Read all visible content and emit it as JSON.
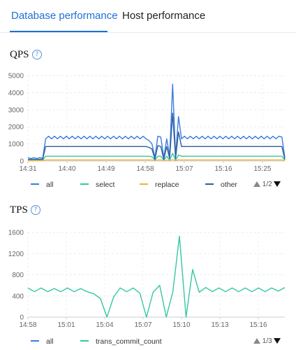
{
  "tabs": [
    {
      "label": "Database performance",
      "active": true
    },
    {
      "label": "Host performance",
      "active": false
    }
  ],
  "help_glyph": "?",
  "colors": {
    "accent": "#1f6fd6",
    "all": "#3b7be0",
    "select": "#35c7a2",
    "replace": "#f2b233",
    "other": "#2f5f9a"
  },
  "qps": {
    "title": "QPS",
    "legend": [
      {
        "label": "all",
        "color": "#3b7be0"
      },
      {
        "label": "select",
        "color": "#35c7a2"
      },
      {
        "label": "replace",
        "color": "#f2b233"
      },
      {
        "label": "other",
        "color": "#2f5f9a"
      }
    ],
    "pager": "1/2"
  },
  "tps": {
    "title": "TPS",
    "legend": [
      {
        "label": "all",
        "color": "#3b7be0"
      },
      {
        "label": "trans_commit_count",
        "color": "#35c7a2"
      }
    ],
    "pager": "1/3"
  },
  "chart_data": [
    {
      "type": "line",
      "title": "QPS",
      "ylim": [
        0,
        5000
      ],
      "y_ticks": [
        "0",
        "1000",
        "2000",
        "3000",
        "4000",
        "5000"
      ],
      "x_tick_labels": [
        "14:31",
        "14:40",
        "14:49",
        "14:58",
        "15:07",
        "15:16",
        "15:25"
      ],
      "grid": true,
      "legend_position": "bottom",
      "series": [
        {
          "name": "all",
          "color": "#3b7be0",
          "values": [
            200,
            140,
            200,
            140,
            200,
            150,
            1300,
            1450,
            1300,
            1450,
            1300,
            1450,
            1300,
            1450,
            1300,
            1450,
            1300,
            1450,
            1300,
            1450,
            1300,
            1450,
            1300,
            1450,
            1300,
            1450,
            1300,
            1450,
            1300,
            1450,
            1300,
            1450,
            1300,
            1450,
            1300,
            1450,
            1300,
            1450,
            1300,
            1450,
            1300,
            1200,
            1000,
            200,
            1450,
            1400,
            200,
            1300,
            300,
            4500,
            300,
            2600,
            1300,
            1450,
            1300,
            1450,
            1300,
            1450,
            1300,
            1450,
            1300,
            1450,
            1300,
            1450,
            1300,
            1450,
            1300,
            1450,
            1300,
            1450,
            1300,
            1450,
            1300,
            1450,
            1300,
            1450,
            1300,
            1450,
            1300,
            1450,
            1300,
            1450,
            1300,
            1450,
            1300,
            1450,
            1400,
            200
          ]
        },
        {
          "name": "select",
          "color": "#35c7a2",
          "values": [
            50,
            50,
            50,
            50,
            50,
            50,
            280,
            280,
            280,
            280,
            280,
            280,
            280,
            280,
            280,
            280,
            280,
            280,
            280,
            280,
            280,
            280,
            280,
            280,
            280,
            280,
            280,
            280,
            280,
            280,
            280,
            280,
            280,
            280,
            280,
            280,
            280,
            280,
            280,
            280,
            280,
            280,
            250,
            50,
            280,
            280,
            50,
            280,
            50,
            450,
            50,
            350,
            280,
            280,
            280,
            280,
            280,
            280,
            280,
            280,
            280,
            280,
            280,
            280,
            280,
            280,
            280,
            280,
            280,
            280,
            280,
            280,
            280,
            280,
            280,
            280,
            280,
            280,
            280,
            280,
            280,
            280,
            280,
            280,
            280,
            280,
            280,
            50
          ]
        },
        {
          "name": "replace",
          "color": "#f2b233",
          "values": [
            20,
            20,
            20,
            20,
            20,
            20,
            60,
            60,
            60,
            60,
            60,
            60,
            60,
            60,
            60,
            60,
            60,
            60,
            60,
            60,
            60,
            60,
            60,
            60,
            60,
            60,
            60,
            60,
            60,
            60,
            60,
            60,
            60,
            60,
            60,
            60,
            60,
            60,
            60,
            60,
            60,
            60,
            60,
            20,
            60,
            60,
            20,
            60,
            20,
            80,
            20,
            70,
            60,
            60,
            60,
            60,
            60,
            60,
            60,
            60,
            60,
            60,
            60,
            60,
            60,
            60,
            60,
            60,
            60,
            60,
            60,
            60,
            60,
            60,
            60,
            60,
            60,
            60,
            60,
            60,
            60,
            60,
            60,
            60,
            60,
            60,
            60,
            20
          ]
        },
        {
          "name": "other",
          "color": "#2f5f9a",
          "values": [
            100,
            100,
            100,
            100,
            100,
            100,
            850,
            850,
            850,
            850,
            850,
            850,
            850,
            850,
            850,
            850,
            850,
            850,
            850,
            850,
            850,
            850,
            850,
            850,
            850,
            850,
            850,
            850,
            850,
            850,
            850,
            850,
            850,
            850,
            850,
            850,
            850,
            850,
            850,
            850,
            850,
            800,
            700,
            100,
            900,
            850,
            100,
            850,
            150,
            2800,
            150,
            1700,
            850,
            850,
            850,
            850,
            850,
            850,
            850,
            850,
            850,
            850,
            850,
            850,
            850,
            850,
            850,
            850,
            850,
            850,
            850,
            850,
            850,
            850,
            850,
            850,
            850,
            850,
            850,
            850,
            850,
            850,
            850,
            850,
            850,
            850,
            850,
            100
          ]
        }
      ]
    },
    {
      "type": "line",
      "title": "TPS",
      "ylim": [
        0,
        1600
      ],
      "y_ticks": [
        "0",
        "400",
        "800",
        "1200",
        "1600"
      ],
      "x_tick_labels": [
        "14:58",
        "15:01",
        "15:04",
        "15:07",
        "15:10",
        "15:13",
        "15:16"
      ],
      "grid": true,
      "legend_position": "bottom",
      "series": [
        {
          "name": "trans_commit_count",
          "color": "#35c7a2",
          "values": [
            550,
            480,
            550,
            480,
            540,
            480,
            550,
            480,
            540,
            480,
            440,
            350,
            0,
            380,
            550,
            480,
            550,
            450,
            0,
            470,
            600,
            0,
            480,
            1530,
            0,
            900,
            470,
            560,
            480,
            550,
            480,
            550,
            480,
            550,
            480,
            550,
            480,
            550,
            490,
            560
          ]
        }
      ]
    }
  ]
}
